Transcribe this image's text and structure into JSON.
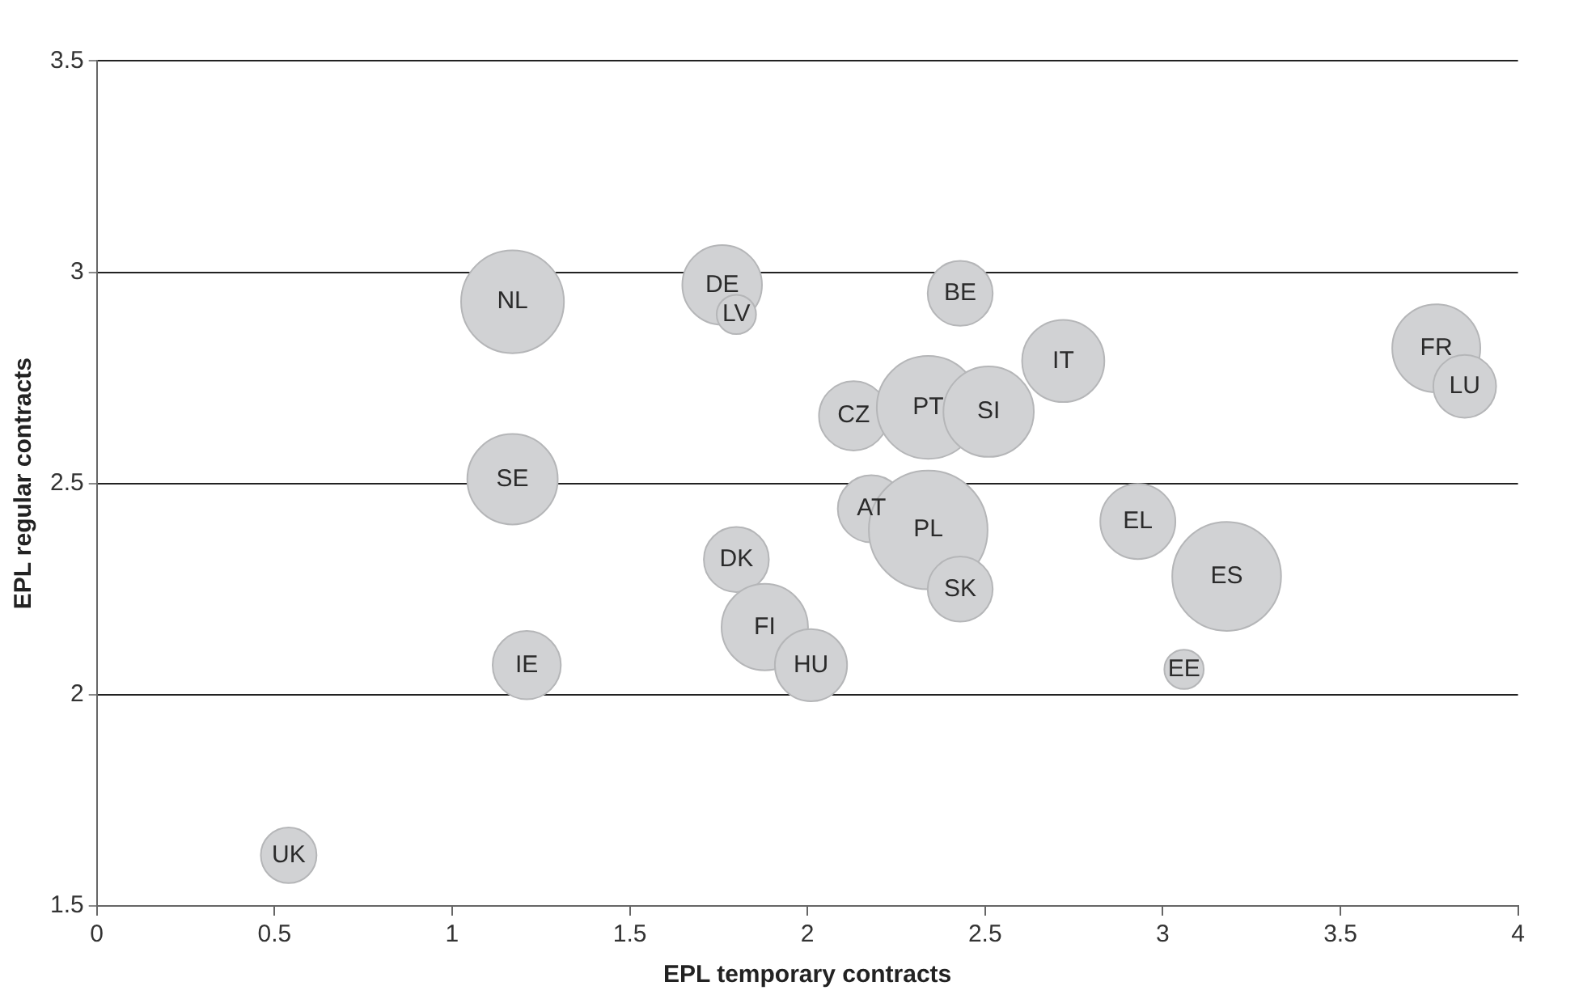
{
  "chart_data": {
    "type": "bubble",
    "xlabel": "EPL temporary contracts",
    "ylabel": "EPL regular contracts",
    "xlim": [
      0,
      4
    ],
    "xticks": [
      0,
      0.5,
      1,
      1.5,
      2,
      2.5,
      3,
      3.5,
      4
    ],
    "ylim": [
      1.5,
      3.5
    ],
    "yticks": [
      1.5,
      2,
      2.5,
      3,
      3.5
    ],
    "grid": "y",
    "legend": false,
    "series": [
      {
        "color": "#d1d2d4",
        "x": [
          1.17,
          1.76,
          1.8,
          2.43,
          2.72,
          2.13,
          2.34,
          2.51,
          1.17,
          2.18,
          2.34,
          2.43,
          2.93,
          3.18,
          3.06,
          3.77,
          3.85,
          1.8,
          1.88,
          2.01,
          1.21,
          0.54
        ],
        "values": [
          2.93,
          2.97,
          2.9,
          2.95,
          2.79,
          2.66,
          2.68,
          2.67,
          2.51,
          2.44,
          2.39,
          2.25,
          2.41,
          2.28,
          2.06,
          2.82,
          2.73,
          2.32,
          2.16,
          2.07,
          2.07,
          1.62
        ],
        "sizes": [
          0.75,
          0.45,
          0.11,
          0.3,
          0.48,
          0.34,
          0.75,
          0.58,
          0.58,
          0.32,
          1,
          0.3,
          0.4,
          0.84,
          0.11,
          0.55,
          0.28,
          0.3,
          0.53,
          0.37,
          0.33,
          0.22
        ]
      }
    ],
    "annotations": [
      {
        "text": "NL",
        "x": 1.17,
        "y": 2.93
      },
      {
        "text": "DE",
        "x": 1.76,
        "y": 2.97
      },
      {
        "text": "LV",
        "x": 1.8,
        "y": 2.9
      },
      {
        "text": "BE",
        "x": 2.43,
        "y": 2.95
      },
      {
        "text": "IT",
        "x": 2.72,
        "y": 2.79
      },
      {
        "text": "CZ",
        "x": 2.13,
        "y": 2.66
      },
      {
        "text": "PT",
        "x": 2.34,
        "y": 2.68
      },
      {
        "text": "SI",
        "x": 2.51,
        "y": 2.67
      },
      {
        "text": "SE",
        "x": 1.17,
        "y": 2.51
      },
      {
        "text": "AT",
        "x": 2.18,
        "y": 2.44
      },
      {
        "text": "PL",
        "x": 2.34,
        "y": 2.39
      },
      {
        "text": "SK",
        "x": 2.43,
        "y": 2.25
      },
      {
        "text": "EL",
        "x": 2.93,
        "y": 2.41
      },
      {
        "text": "ES",
        "x": 3.18,
        "y": 2.28
      },
      {
        "text": "EE",
        "x": 3.06,
        "y": 2.06
      },
      {
        "text": "FR",
        "x": 3.77,
        "y": 2.82
      },
      {
        "text": "LU",
        "x": 3.85,
        "y": 2.73
      },
      {
        "text": "DK",
        "x": 1.8,
        "y": 2.32
      },
      {
        "text": "FI",
        "x": 1.88,
        "y": 2.16
      },
      {
        "text": "HU",
        "x": 2.01,
        "y": 2.07
      },
      {
        "text": "IE",
        "x": 1.21,
        "y": 2.07
      },
      {
        "text": "UK",
        "x": 0.54,
        "y": 1.62
      }
    ]
  }
}
